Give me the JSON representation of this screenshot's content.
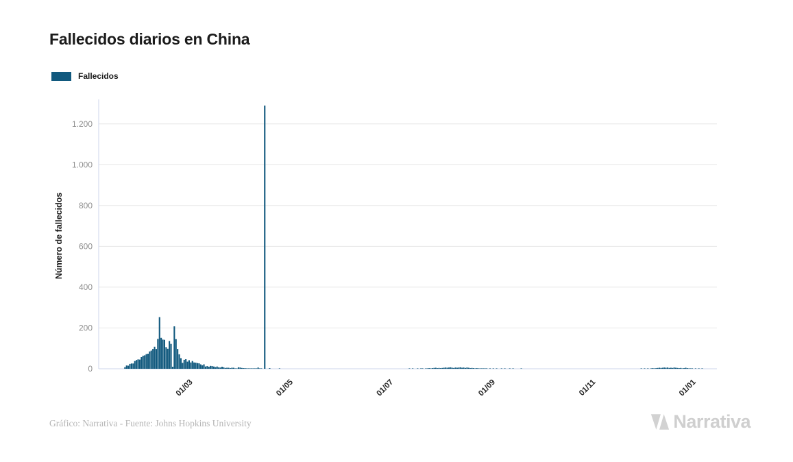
{
  "page": {
    "title": "Fallecidos diarios en China"
  },
  "legend": {
    "label": "Fallecidos",
    "color": "#11597e"
  },
  "footer": {
    "credit": "Gráfico: Narrativa - Fuente: Johns Hopkins University"
  },
  "logo": {
    "text": "Narrativa"
  },
  "chart_data": {
    "type": "bar",
    "title": "Fallecidos diarios en China",
    "ylabel": "Número de fallecidos",
    "ylim": [
      0,
      1300
    ],
    "grid": true,
    "legend_position": "top-left",
    "bar_color": "#11597e",
    "series_name": "Fallecidos",
    "axis_min": "2020-01-07",
    "axis_max": "2021-01-17",
    "yticks": [
      {
        "value": 0,
        "label": "0"
      },
      {
        "value": 200,
        "label": "200"
      },
      {
        "value": 400,
        "label": "400"
      },
      {
        "value": 600,
        "label": "600"
      },
      {
        "value": 800,
        "label": "800"
      },
      {
        "value": 1000,
        "label": "1.000"
      },
      {
        "value": 1200,
        "label": "1.200"
      }
    ],
    "xticks": [
      {
        "date": "2020-03-01",
        "label": "01/03"
      },
      {
        "date": "2020-05-01",
        "label": "01/05"
      },
      {
        "date": "2020-07-01",
        "label": "01/07"
      },
      {
        "date": "2020-09-01",
        "label": "01/09"
      },
      {
        "date": "2020-11-01",
        "label": "01/11"
      },
      {
        "date": "2021-01-01",
        "label": "01/01"
      }
    ],
    "points": [
      [
        "2020-01-23",
        8
      ],
      [
        "2020-01-24",
        16
      ],
      [
        "2020-01-25",
        15
      ],
      [
        "2020-01-26",
        24
      ],
      [
        "2020-01-27",
        26
      ],
      [
        "2020-01-28",
        26
      ],
      [
        "2020-01-29",
        38
      ],
      [
        "2020-01-30",
        43
      ],
      [
        "2020-01-31",
        46
      ],
      [
        "2020-02-01",
        45
      ],
      [
        "2020-02-02",
        57
      ],
      [
        "2020-02-03",
        64
      ],
      [
        "2020-02-04",
        66
      ],
      [
        "2020-02-05",
        72
      ],
      [
        "2020-02-06",
        74
      ],
      [
        "2020-02-07",
        85
      ],
      [
        "2020-02-08",
        89
      ],
      [
        "2020-02-09",
        97
      ],
      [
        "2020-02-10",
        108
      ],
      [
        "2020-02-11",
        97
      ],
      [
        "2020-02-12",
        146
      ],
      [
        "2020-02-13",
        253
      ],
      [
        "2020-02-14",
        152
      ],
      [
        "2020-02-15",
        143
      ],
      [
        "2020-02-16",
        142
      ],
      [
        "2020-02-17",
        106
      ],
      [
        "2020-02-18",
        98
      ],
      [
        "2020-02-19",
        136
      ],
      [
        "2020-02-20",
        122
      ],
      [
        "2020-02-21",
        10
      ],
      [
        "2020-02-22",
        208
      ],
      [
        "2020-02-23",
        145
      ],
      [
        "2020-02-24",
        97
      ],
      [
        "2020-02-25",
        71
      ],
      [
        "2020-02-26",
        52
      ],
      [
        "2020-02-27",
        29
      ],
      [
        "2020-02-28",
        44
      ],
      [
        "2020-02-29",
        47
      ],
      [
        "2020-03-01",
        35
      ],
      [
        "2020-03-02",
        42
      ],
      [
        "2020-03-03",
        31
      ],
      [
        "2020-03-04",
        38
      ],
      [
        "2020-03-05",
        31
      ],
      [
        "2020-03-06",
        30
      ],
      [
        "2020-03-07",
        28
      ],
      [
        "2020-03-08",
        27
      ],
      [
        "2020-03-09",
        22
      ],
      [
        "2020-03-10",
        17
      ],
      [
        "2020-03-11",
        22
      ],
      [
        "2020-03-12",
        11
      ],
      [
        "2020-03-13",
        13
      ],
      [
        "2020-03-14",
        10
      ],
      [
        "2020-03-15",
        14
      ],
      [
        "2020-03-16",
        13
      ],
      [
        "2020-03-17",
        11
      ],
      [
        "2020-03-18",
        8
      ],
      [
        "2020-03-19",
        11
      ],
      [
        "2020-03-20",
        7
      ],
      [
        "2020-03-21",
        6
      ],
      [
        "2020-03-22",
        10
      ],
      [
        "2020-03-23",
        7
      ],
      [
        "2020-03-24",
        4
      ],
      [
        "2020-03-25",
        5
      ],
      [
        "2020-03-26",
        5
      ],
      [
        "2020-03-27",
        3
      ],
      [
        "2020-03-28",
        5
      ],
      [
        "2020-03-29",
        5
      ],
      [
        "2020-03-30",
        2
      ],
      [
        "2020-03-31",
        1
      ],
      [
        "2020-04-01",
        7
      ],
      [
        "2020-04-02",
        6
      ],
      [
        "2020-04-03",
        4
      ],
      [
        "2020-04-04",
        3
      ],
      [
        "2020-04-05",
        3
      ],
      [
        "2020-04-06",
        2
      ],
      [
        "2020-04-07",
        1
      ],
      [
        "2020-04-08",
        2
      ],
      [
        "2020-04-09",
        2
      ],
      [
        "2020-04-10",
        1
      ],
      [
        "2020-04-11",
        2
      ],
      [
        "2020-04-12",
        1
      ],
      [
        "2020-04-13",
        6
      ],
      [
        "2020-04-14",
        1
      ],
      [
        "2020-04-15",
        1
      ],
      [
        "2020-04-17",
        1290
      ],
      [
        "2020-04-20",
        3
      ],
      [
        "2020-04-26",
        1
      ],
      [
        "2020-07-14",
        1
      ],
      [
        "2020-07-16",
        1
      ],
      [
        "2020-07-19",
        2
      ],
      [
        "2020-07-21",
        1
      ],
      [
        "2020-07-22",
        2
      ],
      [
        "2020-07-24",
        2
      ],
      [
        "2020-07-25",
        1
      ],
      [
        "2020-07-26",
        3
      ],
      [
        "2020-07-27",
        2
      ],
      [
        "2020-07-28",
        3
      ],
      [
        "2020-07-29",
        4
      ],
      [
        "2020-07-30",
        5
      ],
      [
        "2020-07-31",
        3
      ],
      [
        "2020-08-01",
        4
      ],
      [
        "2020-08-02",
        3
      ],
      [
        "2020-08-03",
        4
      ],
      [
        "2020-08-04",
        5
      ],
      [
        "2020-08-05",
        6
      ],
      [
        "2020-08-06",
        5
      ],
      [
        "2020-08-07",
        6
      ],
      [
        "2020-08-08",
        7
      ],
      [
        "2020-08-09",
        5
      ],
      [
        "2020-08-10",
        4
      ],
      [
        "2020-08-11",
        6
      ],
      [
        "2020-08-12",
        5
      ],
      [
        "2020-08-13",
        6
      ],
      [
        "2020-08-14",
        7
      ],
      [
        "2020-08-15",
        5
      ],
      [
        "2020-08-16",
        6
      ],
      [
        "2020-08-17",
        4
      ],
      [
        "2020-08-18",
        6
      ],
      [
        "2020-08-19",
        5
      ],
      [
        "2020-08-20",
        3
      ],
      [
        "2020-08-21",
        4
      ],
      [
        "2020-08-22",
        3
      ],
      [
        "2020-08-23",
        2
      ],
      [
        "2020-08-24",
        3
      ],
      [
        "2020-08-25",
        2
      ],
      [
        "2020-08-26",
        1
      ],
      [
        "2020-08-27",
        2
      ],
      [
        "2020-08-28",
        1
      ],
      [
        "2020-08-29",
        2
      ],
      [
        "2020-08-30",
        1
      ],
      [
        "2020-09-01",
        1
      ],
      [
        "2020-09-03",
        2
      ],
      [
        "2020-09-05",
        1
      ],
      [
        "2020-09-08",
        2
      ],
      [
        "2020-09-10",
        1
      ],
      [
        "2020-09-13",
        1
      ],
      [
        "2020-09-15",
        2
      ],
      [
        "2020-09-20",
        1
      ],
      [
        "2020-12-02",
        1
      ],
      [
        "2020-12-04",
        2
      ],
      [
        "2020-12-06",
        1
      ],
      [
        "2020-12-08",
        2
      ],
      [
        "2020-12-09",
        3
      ],
      [
        "2020-12-10",
        2
      ],
      [
        "2020-12-11",
        3
      ],
      [
        "2020-12-12",
        4
      ],
      [
        "2020-12-13",
        5
      ],
      [
        "2020-12-14",
        4
      ],
      [
        "2020-12-15",
        5
      ],
      [
        "2020-12-16",
        6
      ],
      [
        "2020-12-17",
        5
      ],
      [
        "2020-12-18",
        6
      ],
      [
        "2020-12-19",
        4
      ],
      [
        "2020-12-20",
        5
      ],
      [
        "2020-12-21",
        4
      ],
      [
        "2020-12-22",
        6
      ],
      [
        "2020-12-23",
        5
      ],
      [
        "2020-12-24",
        4
      ],
      [
        "2020-12-25",
        3
      ],
      [
        "2020-12-26",
        4
      ],
      [
        "2020-12-27",
        2
      ],
      [
        "2020-12-28",
        3
      ],
      [
        "2020-12-29",
        5
      ],
      [
        "2020-12-30",
        3
      ],
      [
        "2020-12-31",
        2
      ],
      [
        "2021-01-01",
        1
      ],
      [
        "2021-01-02",
        2
      ],
      [
        "2021-01-04",
        1
      ],
      [
        "2021-01-06",
        1
      ],
      [
        "2021-01-08",
        2
      ]
    ]
  }
}
